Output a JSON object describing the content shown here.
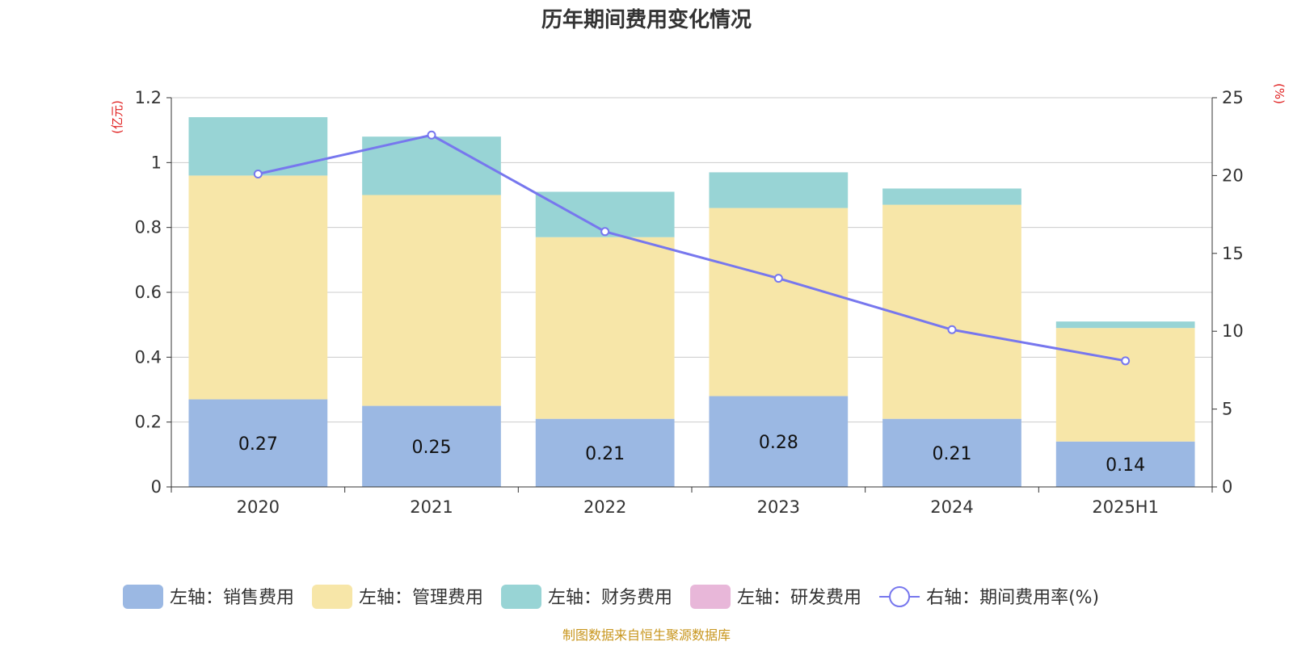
{
  "chart_data": {
    "type": "bar",
    "title": "历年期间费用变化情况",
    "categories": [
      "2020",
      "2021",
      "2022",
      "2023",
      "2024",
      "2025H1"
    ],
    "left_axis": {
      "unit": "(亿元)",
      "ylim": [
        0,
        1.2
      ],
      "ticks": [
        "0",
        "0.2",
        "0.4",
        "0.6",
        "0.8",
        "1",
        "1.2"
      ]
    },
    "right_axis": {
      "unit": "(%)",
      "ylim": [
        0,
        25
      ],
      "ticks": [
        "0",
        "5",
        "10",
        "15",
        "20",
        "25"
      ]
    },
    "grid": true,
    "stacked": true,
    "series": [
      {
        "name": "左轴：销售费用",
        "axis": "left",
        "kind": "bar",
        "color": "#9bb8e3",
        "values": [
          0.27,
          0.25,
          0.21,
          0.28,
          0.21,
          0.14
        ],
        "labels": [
          "0.27",
          "0.25",
          "0.21",
          "0.28",
          "0.21",
          "0.14"
        ]
      },
      {
        "name": "左轴：管理费用",
        "axis": "left",
        "kind": "bar",
        "color": "#f7e6a8",
        "values": [
          0.69,
          0.65,
          0.56,
          0.58,
          0.66,
          0.35
        ]
      },
      {
        "name": "左轴：财务费用",
        "axis": "left",
        "kind": "bar",
        "color": "#98d4d5",
        "values": [
          0.18,
          0.18,
          0.14,
          0.11,
          0.05,
          0.02
        ]
      },
      {
        "name": "左轴：研发费用",
        "axis": "left",
        "kind": "bar",
        "color": "#e8b7d9",
        "values": [
          0,
          0,
          0,
          0,
          0,
          0
        ]
      },
      {
        "name": "右轴：期间费用率(%)",
        "axis": "right",
        "kind": "line",
        "color": "#7777ee",
        "values": [
          20.1,
          22.6,
          16.4,
          13.4,
          10.1,
          8.1
        ]
      }
    ],
    "legend_position": "bottom",
    "source": "制图数据来自恒生聚源数据库"
  }
}
